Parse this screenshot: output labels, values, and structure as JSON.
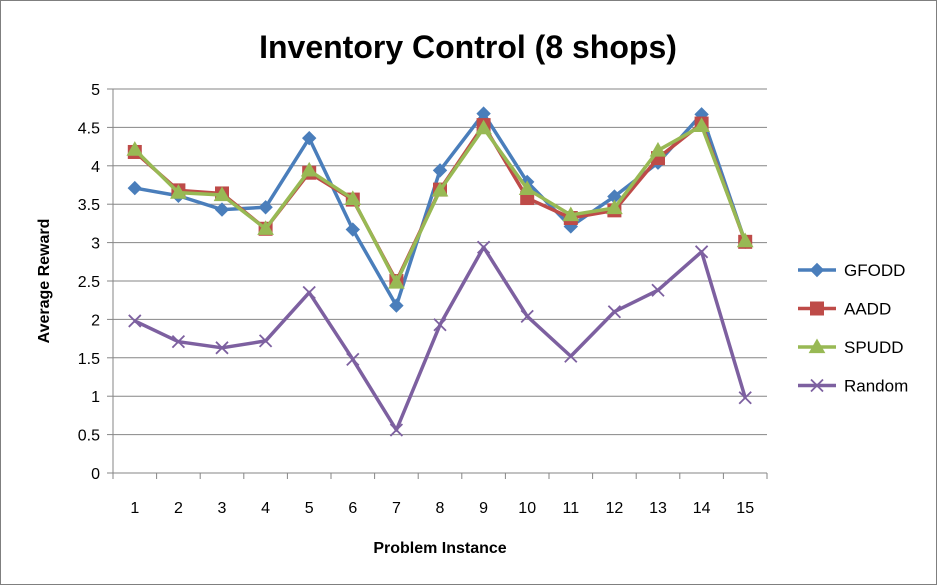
{
  "chart_data": {
    "type": "line",
    "title": "Inventory Control (8 shops)",
    "xlabel": "Problem Instance",
    "ylabel": "Average Reward",
    "categories": [
      "1",
      "2",
      "3",
      "4",
      "5",
      "6",
      "7",
      "8",
      "9",
      "10",
      "11",
      "12",
      "13",
      "14",
      "15"
    ],
    "ylim": [
      0,
      5
    ],
    "yticks": [
      "0",
      "0.5",
      "1",
      "1.5",
      "2",
      "2.5",
      "3",
      "3.5",
      "4",
      "4.5",
      "5"
    ],
    "grid": true,
    "legend_position": "right",
    "series": [
      {
        "name": "GFODD",
        "color": "#4a7ebb",
        "marker": "diamond",
        "values": [
          3.71,
          3.61,
          3.43,
          3.46,
          4.36,
          3.17,
          2.18,
          3.94,
          4.68,
          3.79,
          3.21,
          3.6,
          4.04,
          4.67,
          3.01
        ]
      },
      {
        "name": "AADD",
        "color": "#be4b48",
        "marker": "square",
        "values": [
          4.18,
          3.68,
          3.64,
          3.18,
          3.91,
          3.56,
          2.5,
          3.69,
          4.53,
          3.58,
          3.32,
          3.42,
          4.1,
          4.55,
          3.01
        ]
      },
      {
        "name": "SPUDD",
        "color": "#98b954",
        "marker": "triangle",
        "values": [
          4.21,
          3.65,
          3.62,
          3.18,
          3.94,
          3.57,
          2.48,
          3.68,
          4.49,
          3.7,
          3.36,
          3.45,
          4.2,
          4.52,
          3.02
        ]
      },
      {
        "name": "Random",
        "color": "#7d60a0",
        "marker": "x",
        "values": [
          1.98,
          1.71,
          1.63,
          1.72,
          2.35,
          1.48,
          0.56,
          1.93,
          2.94,
          2.04,
          1.52,
          2.1,
          2.38,
          2.88,
          0.98
        ]
      }
    ]
  }
}
